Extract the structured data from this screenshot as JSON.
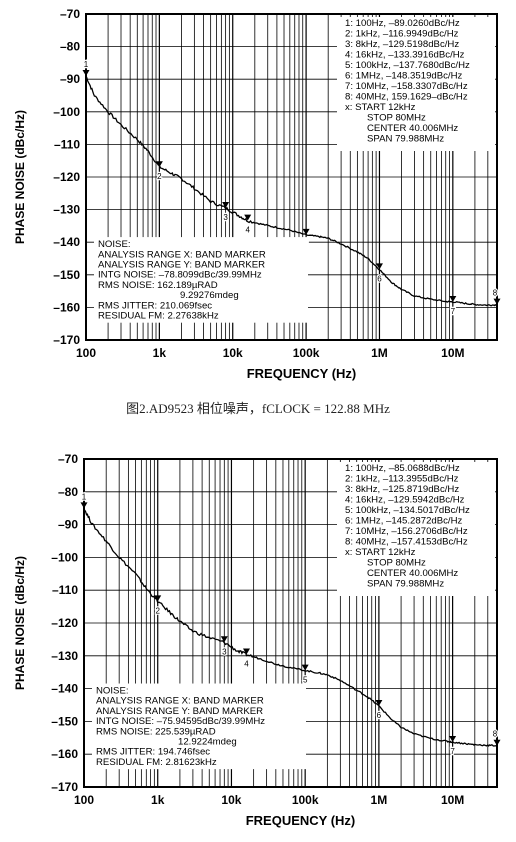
{
  "caption": "图2.AD9523 相位噪声，fCLOCK = 122.88 MHz",
  "chart_data": [
    {
      "type": "line",
      "xlabel": "FREQUENCY (Hz)",
      "ylabel": "PHASE NOISE (dBc/Hz)",
      "xscale": "log",
      "xlim": [
        100,
        40000000
      ],
      "ylim": [
        -170,
        -70
      ],
      "grid": true,
      "x_tick_labels": [
        "100",
        "1k",
        "10k",
        "100k",
        "1M",
        "10M"
      ],
      "y_tick_labels": [
        "-70",
        "-80",
        "-90",
        "-100",
        "-110",
        "-120",
        "-130",
        "-140",
        "-150",
        "-160",
        "-170"
      ],
      "series": [
        {
          "x": [
            100,
            130,
            200,
            300,
            500,
            700,
            1000,
            1500,
            2000,
            3000,
            5000,
            8000,
            12000,
            16000,
            25000,
            40000,
            60000,
            100000,
            150000,
            200000,
            300000,
            500000,
            700000,
            1000000,
            1500000,
            2000000,
            3000000,
            5000000,
            8000000,
            10000000,
            15000000,
            20000000,
            30000000,
            40000000
          ],
          "y": [
            -89.0,
            -95,
            -100,
            -104,
            -108.5,
            -112,
            -116.9,
            -119,
            -120.5,
            -123.5,
            -127.5,
            -129.5,
            -131.8,
            -133.4,
            -134.5,
            -135.5,
            -136.3,
            -137.8,
            -138.3,
            -138.8,
            -140.5,
            -143,
            -145,
            -148.4,
            -152.5,
            -154.5,
            -156.5,
            -157.5,
            -158.2,
            -158.3,
            -158.8,
            -159.1,
            -159.3,
            -159.2
          ]
        }
      ],
      "markers": [
        {
          "id": "1",
          "x": 100,
          "y": -89.026
        },
        {
          "id": "2",
          "x": 1000,
          "y": -116.9949
        },
        {
          "id": "3",
          "x": 8000,
          "y": -129.5198
        },
        {
          "id": "4",
          "x": 16000,
          "y": -133.3916
        },
        {
          "id": "5",
          "x": 100000,
          "y": -137.768
        },
        {
          "id": "6",
          "x": 1000000,
          "y": -148.3519
        },
        {
          "id": "7",
          "x": 10000000,
          "y": -158.3307
        },
        {
          "id": "8",
          "x": 40000000,
          "y": -159.1629
        }
      ],
      "marker_table": [
        "1: 100Hz, –89.0260dBc/Hz",
        "2: 1kHz, –116.9949dBc/Hz",
        "3: 8kHz, –129.5198dBc/Hz",
        "4: 16kHz, –133.3916dBc/Hz",
        "5: 100kHz, –137.7680dBc/Hz",
        "6: 1MHz, –148.3519dBc/Hz",
        "7: 10MHz, –158.3307dBc/Hz",
        "8: 40MHz, 159.1629–dBc/Hz",
        "x: START 12kHz",
        "STOP 80MHz",
        "CENTER 40.006MHz",
        "SPAN 79.988MHz"
      ],
      "noise_block": [
        "NOISE:",
        "ANALYSIS RANGE X: BAND MARKER",
        "ANALYSIS RANGE Y: BAND MARKER",
        "INTG NOISE: –78.8099dBc/39.99MHz",
        "RMS NOISE: 162.189µRAD",
        "9.29276mdeg",
        "RMS JITTER: 210.069fsec",
        "RESIDUAL FM: 2.27638kHz"
      ]
    },
    {
      "type": "line",
      "xlabel": "FREQUENCY (Hz)",
      "ylabel": "PHASE NOISE (dBc/Hz)",
      "xscale": "log",
      "xlim": [
        100,
        40000000
      ],
      "ylim": [
        -170,
        -70
      ],
      "grid": true,
      "x_tick_labels": [
        "100",
        "1k",
        "10k",
        "100k",
        "1M",
        "10M"
      ],
      "y_tick_labels": [
        "-70",
        "-80",
        "-90",
        "-100",
        "-110",
        "-120",
        "-130",
        "-140",
        "-150",
        "-160",
        "-170"
      ],
      "series": [
        {
          "x": [
            100,
            130,
            200,
            300,
            500,
            700,
            1000,
            1500,
            2000,
            3000,
            5000,
            8000,
            12000,
            16000,
            25000,
            40000,
            60000,
            100000,
            150000,
            200000,
            300000,
            500000,
            700000,
            1000000,
            1500000,
            2000000,
            3000000,
            5000000,
            8000000,
            10000000,
            15000000,
            20000000,
            30000000,
            40000000
          ],
          "y": [
            -85.1,
            -90,
            -95,
            -100,
            -105,
            -109.5,
            -113.4,
            -117,
            -119.5,
            -122.5,
            -124.5,
            -125.9,
            -128.5,
            -129.6,
            -131,
            -132.5,
            -133.5,
            -134.5,
            -135.2,
            -135.8,
            -137.5,
            -140.5,
            -142.5,
            -145.3,
            -149.5,
            -151.8,
            -153.8,
            -155.2,
            -156,
            -156.3,
            -156.8,
            -157.1,
            -157.3,
            -157.4
          ]
        }
      ],
      "markers": [
        {
          "id": "1",
          "x": 100,
          "y": -85.0688
        },
        {
          "id": "2",
          "x": 1000,
          "y": -113.3955
        },
        {
          "id": "3",
          "x": 8000,
          "y": -125.8719
        },
        {
          "id": "4",
          "x": 16000,
          "y": -129.5942
        },
        {
          "id": "5",
          "x": 100000,
          "y": -134.5017
        },
        {
          "id": "6",
          "x": 1000000,
          "y": -145.2872
        },
        {
          "id": "7",
          "x": 10000000,
          "y": -156.2706
        },
        {
          "id": "8",
          "x": 40000000,
          "y": -157.4153
        }
      ],
      "marker_table": [
        "1: 100Hz, –85.0688dBc/Hz",
        "2: 1kHz, –113.3955dBc/Hz",
        "3: 8kHz, –125.8719dBc/Hz",
        "4: 16kHz, –129.5942dBc/Hz",
        "5: 100kHz, –134.5017dBc/Hz",
        "6: 1MHz, –145.2872dBc/Hz",
        "7: 10MHz, –156.2706dBc/Hz",
        "8: 40MHz, –157.4153dBc/Hz",
        "x: START 12kHz",
        "STOP 80MHz",
        "CENTER 40.006MHz",
        "SPAN 79.988MHz"
      ],
      "noise_block": [
        "NOISE:",
        "ANALYSIS RANGE X: BAND MARKER",
        "ANALYSIS RANGE Y: BAND MARKER",
        "INTG NOISE: –75.94595dBc/39.99MHz",
        "RMS NOISE: 225.539µRAD",
        "12.9224mdeg",
        "RMS JITTER: 194.746fsec",
        "RESIDUAL FM: 2.81623kHz"
      ]
    }
  ]
}
